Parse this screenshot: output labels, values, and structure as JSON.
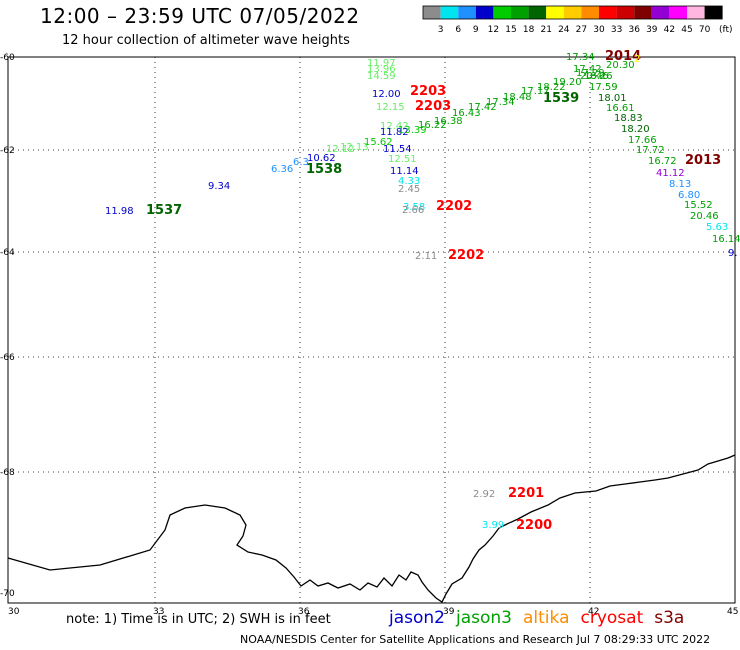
{
  "header": {
    "title": "12:00 – 23:59 UTC 07/05/2022",
    "subtitle": "12 hour collection of altimeter wave heights"
  },
  "colorbar": {
    "unit": "(ft)",
    "bins": [
      {
        "label": "3",
        "color": "#8c8c8c"
      },
      {
        "label": "6",
        "color": "#00e5ee"
      },
      {
        "label": "9",
        "color": "#1e90ff"
      },
      {
        "label": "12",
        "color": "#0000cd"
      },
      {
        "label": "15",
        "color": "#00cc00"
      },
      {
        "label": "18",
        "color": "#00a000"
      },
      {
        "label": "21",
        "color": "#006400"
      },
      {
        "label": "24",
        "color": "#ffff00"
      },
      {
        "label": "27",
        "color": "#ffcc00"
      },
      {
        "label": "30",
        "color": "#ff8c00"
      },
      {
        "label": "33",
        "color": "#ff0000"
      },
      {
        "label": "36",
        "color": "#cc0000"
      },
      {
        "label": "39",
        "color": "#800000"
      },
      {
        "label": "42",
        "color": "#9400d3"
      },
      {
        "label": "45",
        "color": "#ff00ff"
      },
      {
        "label": "70",
        "color": "#ffb6e1"
      },
      {
        "label": "",
        "color": "#000000"
      }
    ]
  },
  "axes": {
    "lon_ticks": [
      "30",
      "33",
      "36",
      "39",
      "42",
      "45"
    ],
    "lat_ticks": [
      "-60",
      "-62",
      "-64",
      "-66",
      "-68",
      "-70"
    ]
  },
  "observations": [
    {
      "text": "11.98",
      "color": "#0000cd"
    },
    {
      "text": "1537",
      "color": "#006400",
      "bold": true
    },
    {
      "text": "9.34",
      "color": "#0000cd"
    },
    {
      "text": "6.36",
      "color": "#1e90ff"
    },
    {
      "text": "6.3",
      "color": "#1e90ff"
    },
    {
      "text": "10.62",
      "color": "#0000cd"
    },
    {
      "text": "1538",
      "color": "#006400",
      "bold": true
    },
    {
      "text": "12.12",
      "color": "#66ee66"
    },
    {
      "text": "12.13",
      "color": "#66ee66"
    },
    {
      "text": "15.62",
      "color": "#00cc00"
    },
    {
      "text": "11.54",
      "color": "#0000cd"
    },
    {
      "text": "12.51",
      "color": "#66ee66"
    },
    {
      "text": "11.14",
      "color": "#0000cd"
    },
    {
      "text": "4.33",
      "color": "#00e5ee"
    },
    {
      "text": "2.45",
      "color": "#8c8c8c"
    },
    {
      "text": "3.58",
      "color": "#00e5ee"
    },
    {
      "text": "2.66",
      "color": "#8c8c8c"
    },
    {
      "text": "2202",
      "color": "#ff0000",
      "bold": true
    },
    {
      "text": "2.11",
      "color": "#8c8c8c"
    },
    {
      "text": "2202",
      "color": "#ff0000",
      "bold": true
    },
    {
      "text": "11.97",
      "color": "#66ee66"
    },
    {
      "text": "13.96",
      "color": "#66ee66"
    },
    {
      "text": "14.59",
      "color": "#66ee66"
    },
    {
      "text": "12.00",
      "color": "#0000cd"
    },
    {
      "text": "2203",
      "color": "#ff0000",
      "bold": true
    },
    {
      "text": "12.15",
      "color": "#66ee66"
    },
    {
      "text": "2203",
      "color": "#ff0000",
      "bold": true
    },
    {
      "text": "12.42",
      "color": "#66ee66"
    },
    {
      "text": "11.82",
      "color": "#0000cd"
    },
    {
      "text": "13.39",
      "color": "#00cc00"
    },
    {
      "text": "16.22",
      "color": "#00a000"
    },
    {
      "text": "16.38",
      "color": "#00a000"
    },
    {
      "text": "16.43",
      "color": "#00a000"
    },
    {
      "text": "17.42",
      "color": "#00a000"
    },
    {
      "text": "17.34",
      "color": "#00a000"
    },
    {
      "text": "18.48",
      "color": "#00a000"
    },
    {
      "text": "17.17",
      "color": "#00a000"
    },
    {
      "text": "18.22",
      "color": "#00a000"
    },
    {
      "text": "1539",
      "color": "#006400",
      "bold": true
    },
    {
      "text": "19.20",
      "color": "#00a000"
    },
    {
      "text": "17.34",
      "color": "#00a000"
    },
    {
      "text": "2014",
      "color": "#800000",
      "bold": true
    },
    {
      "text": "2",
      "color": "#ffff00"
    },
    {
      "text": "17.42",
      "color": "#00a000"
    },
    {
      "text": "20.30",
      "color": "#00a000"
    },
    {
      "text": "17.29",
      "color": "#00a000"
    },
    {
      "text": "20.46",
      "color": "#00a000"
    },
    {
      "text": "18.26",
      "color": "#00a000"
    },
    {
      "text": "17.59",
      "color": "#00a000"
    },
    {
      "text": "18.01",
      "color": "#006400"
    },
    {
      "text": "16.61",
      "color": "#00a000"
    },
    {
      "text": "18.83",
      "color": "#006400"
    },
    {
      "text": "18.20",
      "color": "#006400"
    },
    {
      "text": "17.66",
      "color": "#00a000"
    },
    {
      "text": "17.72",
      "color": "#00a000"
    },
    {
      "text": "16.72",
      "color": "#00a000"
    },
    {
      "text": "2013",
      "color": "#800000",
      "bold": true
    },
    {
      "text": "41.12",
      "color": "#9400d3"
    },
    {
      "text": "8.13",
      "color": "#1e90ff"
    },
    {
      "text": "6.80",
      "color": "#1e90ff"
    },
    {
      "text": "15.52",
      "color": "#00a000"
    },
    {
      "text": "20.46",
      "color": "#00a000"
    },
    {
      "text": "5.63",
      "color": "#00e5ee"
    },
    {
      "text": "16.14",
      "color": "#00a000"
    },
    {
      "text": "9.",
      "color": "#0000cd"
    },
    {
      "text": "2.92",
      "color": "#8c8c8c"
    },
    {
      "text": "2201",
      "color": "#ff0000",
      "bold": true
    },
    {
      "text": "3.99",
      "color": "#00e5ee"
    },
    {
      "text": "2200",
      "color": "#ff0000",
      "bold": true
    }
  ],
  "footer": {
    "note": "note:  1) Time is in UTC;  2) SWH is in feet",
    "credit": "NOAA/NESDIS Center for Satellite Applications and Research    Jul  7 08:29:33 UTC 2022"
  },
  "legend": [
    {
      "label": "jason2",
      "color": "#0000cd"
    },
    {
      "label": "jason3",
      "color": "#00a000"
    },
    {
      "label": "altika",
      "color": "#ff8c00"
    },
    {
      "label": "cryosat",
      "color": "#ff0000"
    },
    {
      "label": "s3a",
      "color": "#800000"
    }
  ]
}
